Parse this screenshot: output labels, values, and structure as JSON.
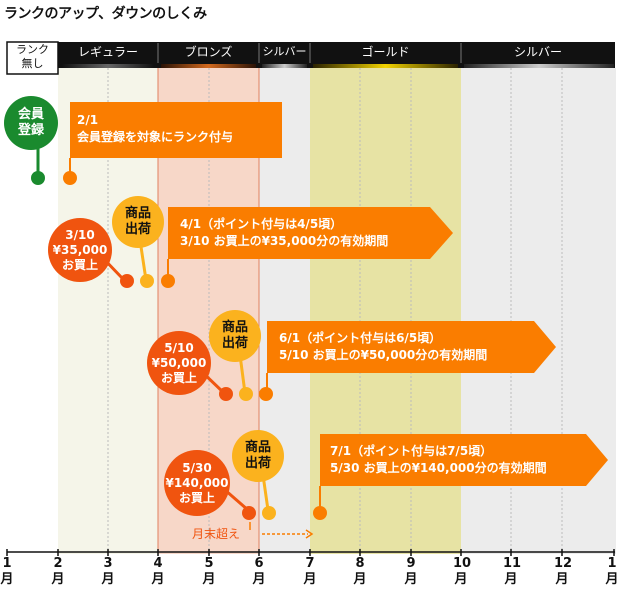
{
  "title": "ランクのアップ、ダウンのしくみ",
  "header": {
    "no_rank": [
      "ランク",
      "無し"
    ],
    "regular": "レギュラー",
    "bronze": "ブロンズ",
    "silver1": "シルバー",
    "gold": "ゴールド",
    "silver2": "シルバー"
  },
  "months": [
    {
      "num": "1",
      "unit": "月"
    },
    {
      "num": "2",
      "unit": "月"
    },
    {
      "num": "3",
      "unit": "月"
    },
    {
      "num": "4",
      "unit": "月"
    },
    {
      "num": "5",
      "unit": "月"
    },
    {
      "num": "6",
      "unit": "月"
    },
    {
      "num": "7",
      "unit": "月"
    },
    {
      "num": "8",
      "unit": "月"
    },
    {
      "num": "9",
      "unit": "月"
    },
    {
      "num": "10",
      "unit": "月"
    },
    {
      "num": "11",
      "unit": "月"
    },
    {
      "num": "12",
      "unit": "月"
    },
    {
      "num": "1",
      "unit": "月"
    }
  ],
  "events": {
    "registration": {
      "bubble": [
        "会員",
        "登録"
      ],
      "lines": [
        "2/1",
        "会員登録を対象にランク付与"
      ]
    },
    "purchase1": {
      "purchase": [
        "3/10",
        "¥35,000",
        "お買上"
      ],
      "ship": [
        "商品",
        "出荷"
      ],
      "lines": [
        "4/1（ポイント付与は4/5頃）",
        "3/10 お買上の¥35,000分の有効期間"
      ]
    },
    "purchase2": {
      "purchase": [
        "5/10",
        "¥50,000",
        "お買上"
      ],
      "ship": [
        "商品",
        "出荷"
      ],
      "lines": [
        "6/1（ポイント付与は6/5頃）",
        "5/10 お買上の¥50,000分の有効期間"
      ]
    },
    "purchase3": {
      "purchase": [
        "5/30",
        "¥140,000",
        "お買上"
      ],
      "ship": [
        "商品",
        "出荷"
      ],
      "lines": [
        "7/1（ポイント付与は7/5頃）",
        "5/30 お買上の¥140,000分の有効期間"
      ],
      "note": "月末超え"
    }
  },
  "colors": {
    "orange": "#fa7d00",
    "red": "#f0540f",
    "yellow": "#fbb21e",
    "green": "#1a8a2e",
    "bronze_band": "#f7d7c8",
    "gold_band": "#e7e3a4",
    "silver_band": "#ececec",
    "regular_band": "#f5f5e9"
  }
}
